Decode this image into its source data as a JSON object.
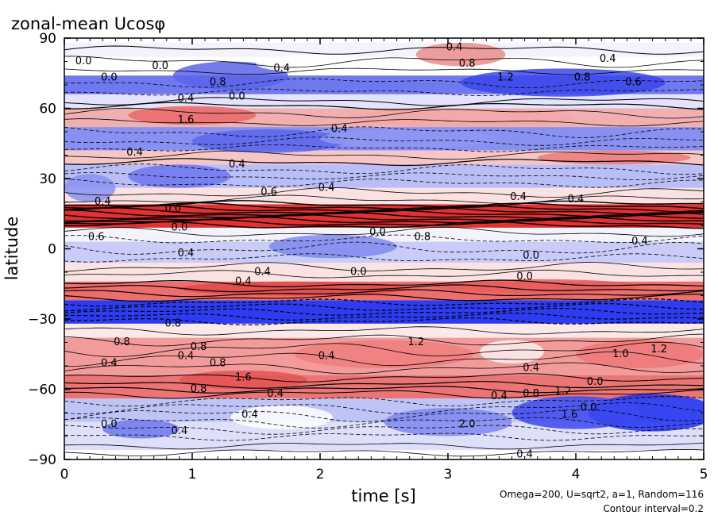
{
  "chart_data": {
    "type": "heatmap",
    "title": "zonal-mean Ucosφ",
    "xlabel": "time [s]",
    "ylabel": "latitude",
    "xlim": [
      0,
      5
    ],
    "ylim": [
      -90,
      90
    ],
    "x_ticks": [
      "0",
      "1",
      "2",
      "3",
      "4",
      "5"
    ],
    "y_ticks": [
      "90",
      "60",
      "30",
      "0",
      "−30",
      "−60",
      "−90"
    ],
    "colormap": {
      "negative": "#0000ff",
      "zero": "#ffffff",
      "positive": "#ff0000"
    },
    "contour_style": {
      "negative": "dashed",
      "positive": "solid"
    },
    "contour_labels": [
      {
        "t": 0.15,
        "lat": 80,
        "text": "0.0"
      },
      {
        "t": 0.75,
        "lat": 78,
        "text": "0.0"
      },
      {
        "t": 1.7,
        "lat": 77,
        "text": "0.4"
      },
      {
        "t": 3.05,
        "lat": 86,
        "text": "0.4"
      },
      {
        "t": 3.15,
        "lat": 79,
        "text": "0.8"
      },
      {
        "t": 3.45,
        "lat": 73,
        "text": "1.2"
      },
      {
        "t": 0.35,
        "lat": 73,
        "text": "0.0"
      },
      {
        "t": 1.2,
        "lat": 71,
        "text": "0.8"
      },
      {
        "t": 4.05,
        "lat": 73,
        "text": "0.8"
      },
      {
        "t": 4.45,
        "lat": 71,
        "text": "0.6"
      },
      {
        "t": 4.25,
        "lat": 81,
        "text": "0.4"
      },
      {
        "t": 0.95,
        "lat": 64,
        "text": "0.4"
      },
      {
        "t": 1.35,
        "lat": 65,
        "text": "0.0"
      },
      {
        "t": 0.95,
        "lat": 55,
        "text": "1.6"
      },
      {
        "t": 2.15,
        "lat": 51,
        "text": "0.4"
      },
      {
        "t": 0.55,
        "lat": 41,
        "text": "0.4"
      },
      {
        "t": 1.35,
        "lat": 36,
        "text": "0.4"
      },
      {
        "t": 1.6,
        "lat": 24,
        "text": "0.6"
      },
      {
        "t": 2.05,
        "lat": 26,
        "text": "0.4"
      },
      {
        "t": 0.3,
        "lat": 20,
        "text": "0.4"
      },
      {
        "t": 0.85,
        "lat": 17,
        "text": "0.0"
      },
      {
        "t": 3.55,
        "lat": 22,
        "text": "0.4"
      },
      {
        "t": 4.0,
        "lat": 21,
        "text": "0.4"
      },
      {
        "t": 0.9,
        "lat": 9,
        "text": "0.0"
      },
      {
        "t": 2.45,
        "lat": 7,
        "text": "0.0"
      },
      {
        "t": 2.8,
        "lat": 5,
        "text": "0.8"
      },
      {
        "t": 0.25,
        "lat": 5,
        "text": "0.6"
      },
      {
        "t": 4.5,
        "lat": 3,
        "text": "0.4"
      },
      {
        "t": 0.95,
        "lat": -2,
        "text": "0.4"
      },
      {
        "t": 3.65,
        "lat": -3,
        "text": "0.0"
      },
      {
        "t": 1.55,
        "lat": -10,
        "text": "0.4"
      },
      {
        "t": 2.3,
        "lat": -10,
        "text": "0.0"
      },
      {
        "t": 3.6,
        "lat": -12,
        "text": "0.0"
      },
      {
        "t": 1.4,
        "lat": -14,
        "text": "0.4"
      },
      {
        "t": 0.85,
        "lat": -32,
        "text": "0.8"
      },
      {
        "t": 0.45,
        "lat": -40,
        "text": "0.8"
      },
      {
        "t": 1.05,
        "lat": -42,
        "text": "0.8"
      },
      {
        "t": 2.05,
        "lat": -46,
        "text": "0.4"
      },
      {
        "t": 2.75,
        "lat": -40,
        "text": "1.2"
      },
      {
        "t": 3.65,
        "lat": -51,
        "text": "0.4"
      },
      {
        "t": 4.35,
        "lat": -45,
        "text": "1.0"
      },
      {
        "t": 4.65,
        "lat": -43,
        "text": "1.2"
      },
      {
        "t": 1.2,
        "lat": -49,
        "text": "0.8"
      },
      {
        "t": 0.95,
        "lat": -46,
        "text": "0.4"
      },
      {
        "t": 0.35,
        "lat": -49,
        "text": "0.4"
      },
      {
        "t": 1.4,
        "lat": -55,
        "text": "1.6"
      },
      {
        "t": 1.65,
        "lat": -62,
        "text": "0.4"
      },
      {
        "t": 1.05,
        "lat": -60,
        "text": "0.8"
      },
      {
        "t": 3.4,
        "lat": -63,
        "text": "0.4"
      },
      {
        "t": 3.65,
        "lat": -62,
        "text": "0.8"
      },
      {
        "t": 3.9,
        "lat": -61,
        "text": "1.2"
      },
      {
        "t": 4.15,
        "lat": -57,
        "text": "0.0"
      },
      {
        "t": 1.45,
        "lat": -71,
        "text": "0.4"
      },
      {
        "t": 0.35,
        "lat": -75,
        "text": "0.0"
      },
      {
        "t": 0.9,
        "lat": -78,
        "text": "0.4"
      },
      {
        "t": 3.15,
        "lat": -75,
        "text": "2.0"
      },
      {
        "t": 3.95,
        "lat": -71,
        "text": "1.6"
      },
      {
        "t": 4.1,
        "lat": -68,
        "text": "0.0"
      },
      {
        "t": 3.6,
        "lat": -88,
        "text": "0.4"
      }
    ],
    "footnotes": [
      "Omega=200, U=sqrt2, a=1, Random=116",
      "Contour interval=0.2"
    ]
  }
}
